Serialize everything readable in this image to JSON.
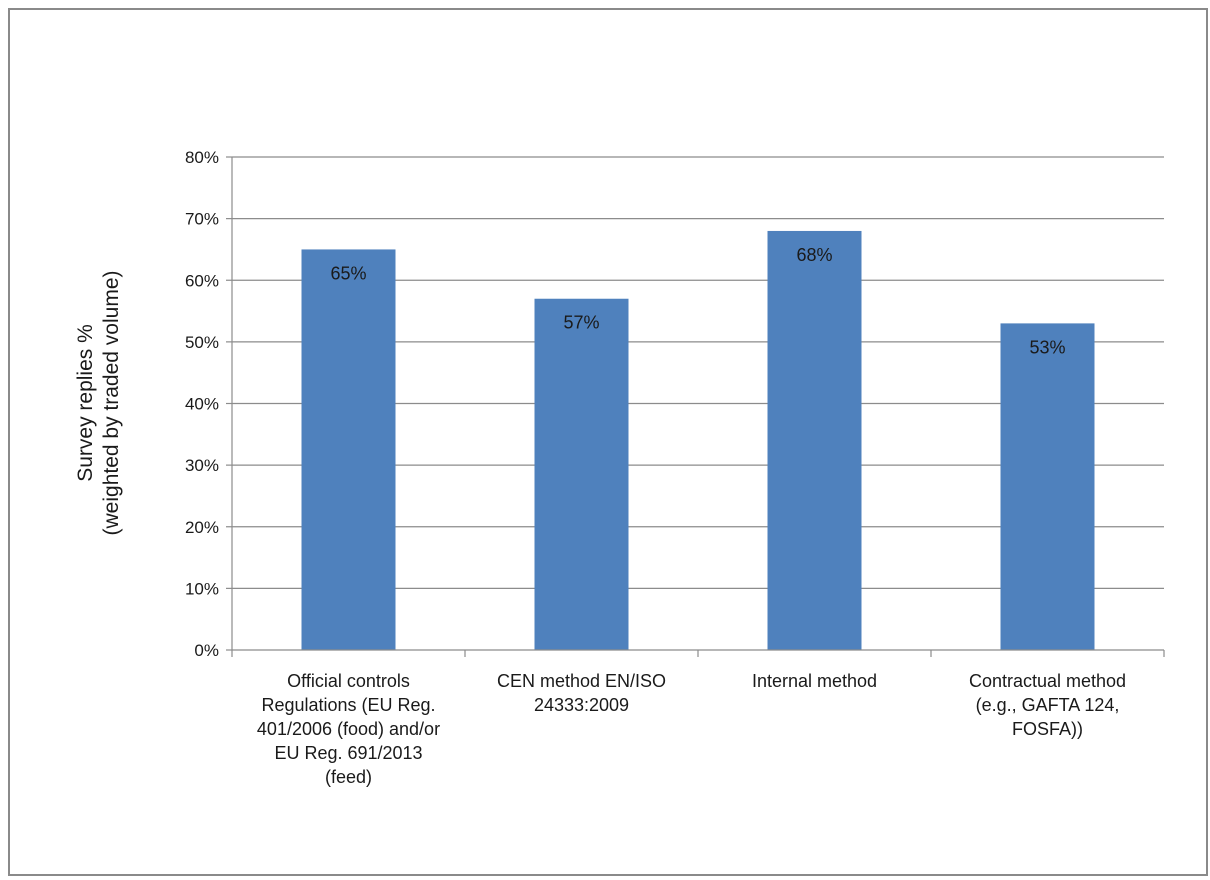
{
  "chart_data": {
    "type": "bar",
    "categories": [
      [
        "Official controls",
        "Regulations (EU Reg.",
        "401/2006 (food) and/or",
        "EU Reg. 691/2013",
        "(feed)"
      ],
      [
        "CEN method EN/ISO",
        "24333:2009"
      ],
      [
        "Internal method"
      ],
      [
        "Contractual method",
        "(e.g., GAFTA 124,",
        "FOSFA))"
      ]
    ],
    "values": [
      65,
      57,
      68,
      53
    ],
    "data_labels": [
      "65%",
      "57%",
      "68%",
      "53%"
    ],
    "ylabel": [
      "Survey replies %",
      "(weighted by traded volume)"
    ],
    "ylim": [
      0,
      80
    ],
    "yticks": [
      0,
      10,
      20,
      30,
      40,
      50,
      60,
      70,
      80
    ],
    "ytick_labels": [
      "0%",
      "10%",
      "20%",
      "30%",
      "40%",
      "50%",
      "60%",
      "70%",
      "80%"
    ],
    "grid": true,
    "legend": "none",
    "bar_color": "#4f81bd",
    "grid_color": "#8c8c8c"
  }
}
